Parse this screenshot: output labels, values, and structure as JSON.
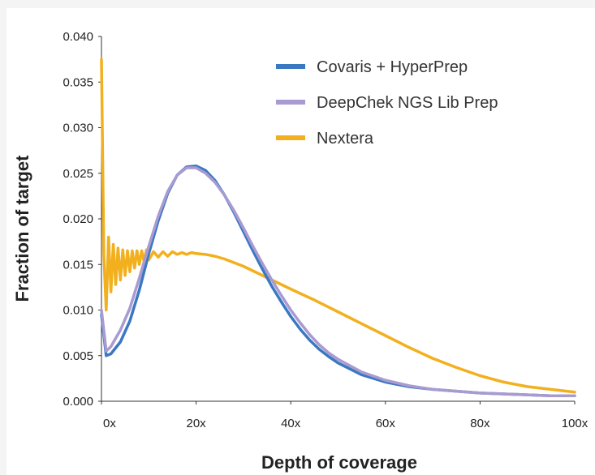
{
  "chart_data": {
    "type": "line",
    "xlabel": "Depth of coverage",
    "ylabel": "Fraction of target",
    "xlim": [
      0,
      100
    ],
    "ylim": [
      0,
      0.04
    ],
    "x_ticks": [
      0,
      20,
      40,
      60,
      80,
      100
    ],
    "x_tick_labels": [
      "0x",
      "20x",
      "40x",
      "60x",
      "80x",
      "100x"
    ],
    "y_ticks": [
      0,
      0.005,
      0.01,
      0.015,
      0.02,
      0.025,
      0.03,
      0.035,
      0.04
    ],
    "y_tick_labels": [
      "0.000",
      "0.005",
      "0.010",
      "0.015",
      "0.020",
      "0.025",
      "0.030",
      "0.035",
      "0.040"
    ],
    "legend_position": "top-right",
    "grid": false,
    "series": [
      {
        "name": "Covaris + HyperPrep",
        "color": "#3a78c2",
        "x": [
          0,
          1,
          2,
          4,
          6,
          8,
          10,
          12,
          14,
          16,
          18,
          20,
          22,
          24,
          26,
          28,
          30,
          32,
          34,
          36,
          38,
          40,
          42,
          44,
          46,
          48,
          50,
          55,
          60,
          65,
          70,
          75,
          80,
          85,
          90,
          95,
          100
        ],
        "y": [
          0.0095,
          0.005,
          0.0052,
          0.0065,
          0.0088,
          0.0122,
          0.0162,
          0.0198,
          0.0228,
          0.0248,
          0.0257,
          0.0258,
          0.0253,
          0.0242,
          0.0226,
          0.0207,
          0.0186,
          0.0165,
          0.0145,
          0.0126,
          0.0109,
          0.0093,
          0.0079,
          0.0067,
          0.0057,
          0.0049,
          0.0042,
          0.0029,
          0.0021,
          0.0016,
          0.0013,
          0.0011,
          0.0009,
          0.0008,
          0.0007,
          0.0006,
          0.0006
        ]
      },
      {
        "name": "DeepChek NGS Lib Prep",
        "color": "#a99bd1",
        "x": [
          0,
          1,
          2,
          4,
          6,
          8,
          10,
          12,
          14,
          16,
          18,
          20,
          22,
          24,
          26,
          28,
          30,
          32,
          34,
          36,
          38,
          40,
          42,
          44,
          46,
          48,
          50,
          55,
          60,
          65,
          70,
          75,
          80,
          85,
          90,
          95,
          100
        ],
        "y": [
          0.01,
          0.0055,
          0.006,
          0.0078,
          0.0102,
          0.0135,
          0.017,
          0.0203,
          0.023,
          0.0248,
          0.0256,
          0.0256,
          0.025,
          0.024,
          0.0226,
          0.0209,
          0.019,
          0.017,
          0.0151,
          0.0133,
          0.0116,
          0.01,
          0.0086,
          0.0073,
          0.0062,
          0.0053,
          0.0046,
          0.0032,
          0.0023,
          0.0017,
          0.0013,
          0.0011,
          0.0009,
          0.0008,
          0.0007,
          0.0006,
          0.0006
        ]
      },
      {
        "name": "Nextera",
        "color": "#f2b01e",
        "x": [
          0,
          0.5,
          1,
          1.5,
          2,
          2.5,
          3,
          3.5,
          4,
          4.5,
          5,
          5.5,
          6,
          6.5,
          7,
          7.5,
          8,
          8.5,
          9,
          9.5,
          10,
          11,
          12,
          13,
          14,
          15,
          16,
          17,
          18,
          19,
          20,
          22,
          24,
          26,
          28,
          30,
          32,
          34,
          36,
          38,
          40,
          45,
          50,
          55,
          60,
          65,
          70,
          75,
          80,
          85,
          90,
          95,
          100
        ],
        "y": [
          0.0375,
          0.016,
          0.01,
          0.018,
          0.012,
          0.0172,
          0.0128,
          0.0168,
          0.0133,
          0.0166,
          0.0138,
          0.0165,
          0.0142,
          0.0165,
          0.0146,
          0.0165,
          0.015,
          0.0165,
          0.0153,
          0.0166,
          0.0155,
          0.0164,
          0.0158,
          0.0164,
          0.0159,
          0.0164,
          0.0161,
          0.0163,
          0.0161,
          0.0163,
          0.0162,
          0.0161,
          0.0159,
          0.0156,
          0.0152,
          0.0148,
          0.0143,
          0.0138,
          0.0133,
          0.0128,
          0.0123,
          0.0111,
          0.0098,
          0.0085,
          0.0072,
          0.0059,
          0.0047,
          0.0037,
          0.0028,
          0.0021,
          0.0016,
          0.0013,
          0.001
        ]
      }
    ]
  }
}
